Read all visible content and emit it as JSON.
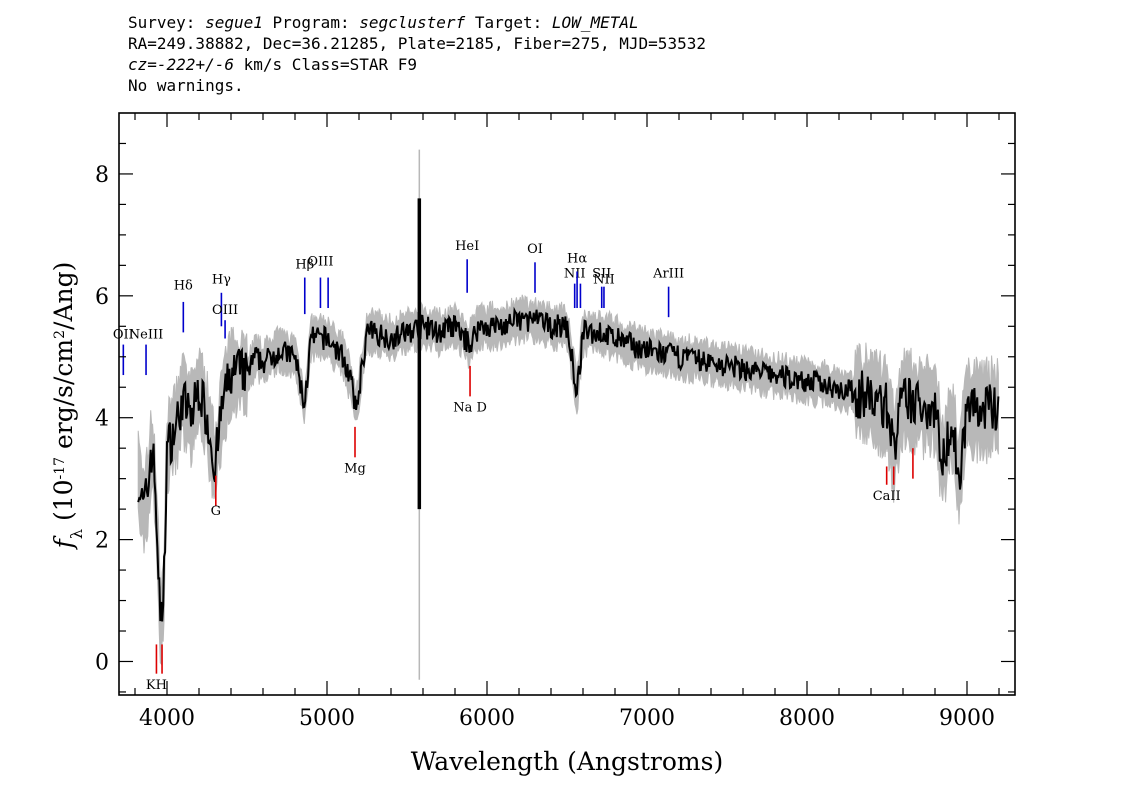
{
  "header": {
    "survey_label": "Survey:",
    "survey": "segue1",
    "program_label": "Program:",
    "program": "segclusterf",
    "target_label": "Target:",
    "target": "LOW_METAL",
    "line2": "RA=249.38882, Dec=36.21285, Plate=2185, Fiber=275, MJD=53532",
    "cz_label": "cz=",
    "cz_value": "-222+/-6",
    "cz_rest": "km/s Class=STAR F9",
    "warnings": "No warnings."
  },
  "colors": {
    "flux": "#000000",
    "noise": "#b8b8b8",
    "emission": "#0000cc",
    "absorption": "#dd0000"
  },
  "chart_data": {
    "type": "line",
    "xlabel": "Wavelength (Angstroms)",
    "ylabel_parts": [
      "f",
      "λ",
      " (10",
      "-17",
      " erg/s/cm",
      "2",
      "/Ang)"
    ],
    "xlim": [
      3700,
      9300
    ],
    "ylim": [
      -0.55,
      9.0
    ],
    "x_ticks": [
      4000,
      5000,
      6000,
      7000,
      8000,
      9000
    ],
    "y_ticks": [
      0,
      2,
      4,
      6,
      8
    ],
    "x_ticklabels": [
      "4000",
      "5000",
      "6000",
      "7000",
      "8000",
      "9000"
    ],
    "y_ticklabels": [
      "0",
      "2",
      "4",
      "6",
      "8"
    ],
    "grid": false,
    "series": [
      {
        "x": [
          3820,
          3850,
          3880,
          3900,
          3920,
          3940,
          3960,
          3980,
          4000,
          4050,
          4100,
          4150,
          4200,
          4250,
          4300,
          4350,
          4400,
          4450,
          4500,
          4550,
          4600,
          4700,
          4800,
          4860,
          4900,
          5000,
          5100,
          5150,
          5180,
          5250,
          5300,
          5400,
          5500,
          5600,
          5700,
          5800,
          5890,
          5950,
          6000,
          6100,
          6200,
          6300,
          6400,
          6500,
          6563,
          6600,
          6700,
          6800,
          6900,
          7000,
          7200,
          7400,
          7600,
          7800,
          8000,
          8200,
          8300,
          8400,
          8500,
          8542,
          8600,
          8700,
          8800,
          8850,
          8900,
          8950,
          9000,
          9100,
          9200
        ],
        "y": [
          3.0,
          2.5,
          2.8,
          3.5,
          3.2,
          2.0,
          0.5,
          1.2,
          3.5,
          3.8,
          4.3,
          4.0,
          4.5,
          4.0,
          3.2,
          4.3,
          4.7,
          4.8,
          4.7,
          5.0,
          4.9,
          5.1,
          5.0,
          4.2,
          5.3,
          5.3,
          5.0,
          4.6,
          4.1,
          5.4,
          5.4,
          5.3,
          5.4,
          5.5,
          5.4,
          5.5,
          5.2,
          5.5,
          5.5,
          5.5,
          5.6,
          5.6,
          5.5,
          5.5,
          4.4,
          5.4,
          5.4,
          5.3,
          5.2,
          5.1,
          5.0,
          4.9,
          4.8,
          4.7,
          4.6,
          4.5,
          4.4,
          4.3,
          4.2,
          3.5,
          4.3,
          4.2,
          4.2,
          3.2,
          4.0,
          3.0,
          4.2,
          4.1,
          4.2
        ]
      }
    ],
    "artifact_spike": {
      "x": 5577,
      "ymin": 2.5,
      "ymax": 7.6
    },
    "emission_lines": [
      {
        "label": "OII",
        "x": 3727,
        "y1": 4.7,
        "y2": 5.2,
        "label_y": 5.3
      },
      {
        "label": "NeIII",
        "x": 3869,
        "y1": 4.7,
        "y2": 5.2,
        "label_y": 5.3
      },
      {
        "label": "Hδ",
        "x": 4102,
        "y1": 5.4,
        "y2": 5.9,
        "label_y": 6.1
      },
      {
        "label": "Hγ",
        "x": 4340,
        "y1": 5.5,
        "y2": 6.05,
        "label_y": 6.2
      },
      {
        "label": "OIII",
        "x": 4363,
        "y1": 5.3,
        "y2": 5.6,
        "label_y": 5.7
      },
      {
        "label": "Hβ",
        "x": 4861,
        "y1": 5.7,
        "y2": 6.3,
        "label_y": 6.45
      },
      {
        "label": "OIII",
        "x": 4959,
        "y1": 5.8,
        "y2": 6.3,
        "label_y": 6.5
      },
      {
        "label": "",
        "x": 5007,
        "y1": 5.8,
        "y2": 6.3,
        "label_y": 6.5
      },
      {
        "label": "HeI",
        "x": 5876,
        "y1": 6.05,
        "y2": 6.6,
        "label_y": 6.75
      },
      {
        "label": "OI",
        "x": 6300,
        "y1": 6.05,
        "y2": 6.55,
        "label_y": 6.7
      },
      {
        "label": "NII",
        "x": 6548,
        "y1": 5.8,
        "y2": 6.2,
        "label_y": 6.3
      },
      {
        "label": "Hα",
        "x": 6563,
        "y1": 5.8,
        "y2": 6.4,
        "label_y": 6.55
      },
      {
        "label": "",
        "x": 6584,
        "y1": 5.8,
        "y2": 6.2,
        "label_y": 6.3
      },
      {
        "label": "SII",
        "x": 6717,
        "y1": 5.8,
        "y2": 6.15,
        "label_y": 6.3
      },
      {
        "label": "NII",
        "x": 6731,
        "y1": 5.8,
        "y2": 6.15,
        "label_y": 6.2
      },
      {
        "label": "ArIII",
        "x": 7135,
        "y1": 5.65,
        "y2": 6.15,
        "label_y": 6.3
      }
    ],
    "absorption_lines": [
      {
        "label": "KH",
        "x": 3934,
        "y1": -0.2,
        "y2": 0.28,
        "label_y": -0.45
      },
      {
        "label": "",
        "x": 3969,
        "y1": -0.2,
        "y2": 0.28,
        "label_y": -0.45
      },
      {
        "label": "G",
        "x": 4305,
        "y1": 2.55,
        "y2": 3.05,
        "label_y": 2.4
      },
      {
        "label": "Mg",
        "x": 5175,
        "y1": 3.35,
        "y2": 3.85,
        "label_y": 3.1
      },
      {
        "label": "Na D",
        "x": 5894,
        "y1": 4.35,
        "y2": 4.85,
        "label_y": 4.1
      },
      {
        "label": "CaII",
        "x": 8498,
        "y1": 2.9,
        "y2": 3.2,
        "label_y": 2.65
      },
      {
        "label": "",
        "x": 8542,
        "y1": 2.9,
        "y2": 3.2,
        "label_y": 2.65
      },
      {
        "label": "",
        "x": 8662,
        "y1": 3.0,
        "y2": 3.5,
        "label_y": 2.65
      }
    ]
  }
}
